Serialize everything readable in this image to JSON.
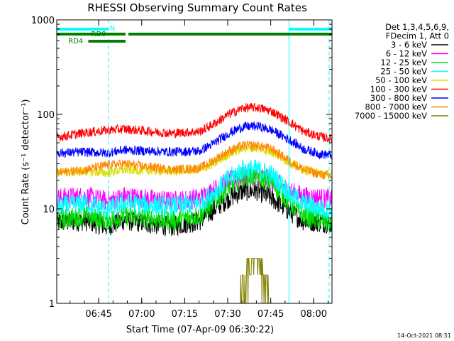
{
  "chart_data": {
    "type": "line",
    "title": "RHESSI Observing Summary Count Rates",
    "xlabel": "Start Time (07-Apr-09 06:30:22)",
    "ylabel": "Count Rate (s⁻¹ detector⁻¹)",
    "yscale": "log",
    "ylim": [
      1,
      1000
    ],
    "xlim_minutes": [
      0,
      96
    ],
    "x_unit": "minutes after 06:30:22",
    "x_ticks": [
      "06:45",
      "07:00",
      "07:15",
      "07:30",
      "07:45",
      "08:00"
    ],
    "y_ticks": [
      "1",
      "10",
      "100",
      "1000"
    ],
    "legend_header": [
      "Det 1,3,4,5,6,9,",
      "FDecim 1, Att 0"
    ],
    "legend_position": "right, outside plot",
    "series": [
      {
        "name": "3 - 6 keV",
        "color": "#000000",
        "x": [
          0,
          10,
          17.5,
          23.5,
          40,
          50,
          55,
          60,
          65,
          70,
          75,
          82,
          86,
          92,
          96
        ],
        "values": [
          7.2,
          7.5,
          6.5,
          7.6,
          6.5,
          7.5,
          10,
          13,
          15.5,
          15.5,
          13,
          9,
          7.5,
          7.2,
          7
        ]
      },
      {
        "name": "6 - 12 keV",
        "color": "#ff00ff",
        "x": [
          0,
          10,
          17.5,
          23.5,
          40,
          50,
          55,
          60,
          65,
          70,
          75,
          82,
          86,
          92,
          96
        ],
        "values": [
          13,
          13.5,
          12,
          13.5,
          12,
          13,
          16,
          19.5,
          22,
          22,
          20,
          15,
          13.5,
          13,
          12.5
        ]
      },
      {
        "name": "12 - 25 keV",
        "color": "#00dd00",
        "x": [
          0,
          10,
          17.5,
          23.5,
          40,
          50,
          55,
          60,
          65,
          70,
          75,
          82,
          86,
          92,
          96
        ],
        "values": [
          7.5,
          8.5,
          7.5,
          8.5,
          7.5,
          8.5,
          12,
          17,
          22,
          22,
          19,
          11,
          8.5,
          7.5,
          7
        ]
      },
      {
        "name": "25 - 50 keV",
        "color": "#00ffff",
        "x": [
          0,
          10,
          17.5,
          23.5,
          40,
          50,
          55,
          60,
          65,
          70,
          75,
          82,
          86,
          92,
          96
        ],
        "values": [
          10.5,
          11.5,
          9.8,
          11.5,
          10.5,
          11.5,
          15,
          21,
          26,
          26,
          23,
          14,
          11.5,
          10,
          9.7
        ]
      },
      {
        "name": "50 - 100 keV",
        "color": "#dddd00",
        "x": [
          0,
          10,
          17.5,
          23.5,
          40,
          50,
          55,
          60,
          65,
          70,
          75,
          82,
          86,
          92,
          96
        ],
        "values": [
          24,
          25,
          24,
          26,
          25,
          26,
          30,
          38,
          44,
          44,
          40,
          30,
          26,
          24,
          23
        ]
      },
      {
        "name": "100 - 300 keV",
        "color": "#ff0000",
        "x": [
          0,
          10,
          17.5,
          23.5,
          40,
          50,
          55,
          60,
          65,
          70,
          75,
          82,
          86,
          92,
          96
        ],
        "values": [
          57,
          64,
          68,
          70,
          63,
          66,
          80,
          100,
          117,
          118,
          108,
          80,
          66,
          58,
          55
        ]
      },
      {
        "name": "300 - 800 keV",
        "color": "#0000ff",
        "x": [
          0,
          10,
          17.5,
          23.5,
          40,
          50,
          55,
          60,
          65,
          70,
          75,
          82,
          86,
          92,
          96
        ],
        "values": [
          39,
          40,
          39,
          42,
          40,
          41,
          50,
          63,
          74,
          75,
          68,
          52,
          43,
          38,
          37
        ]
      },
      {
        "name": "800 - 7000 keV",
        "color": "#ff8800",
        "x": [
          0,
          10,
          17.5,
          23.5,
          40,
          50,
          55,
          60,
          65,
          70,
          75,
          82,
          86,
          92,
          96
        ],
        "values": [
          24,
          26,
          29,
          30,
          26,
          27,
          33,
          41,
          47,
          47,
          43,
          31,
          26,
          23,
          22
        ]
      },
      {
        "name": "7000 - 15000 keV",
        "color": "#808000",
        "x": [
          64,
          66,
          68,
          70,
          72,
          74
        ],
        "values": [
          1,
          2,
          3,
          3,
          2,
          1
        ]
      }
    ],
    "segment_bars": [
      {
        "label": "N",
        "color": "#00ffff",
        "x_start": 0,
        "x_end": 18
      },
      {
        "label": "",
        "color": "#00ffff",
        "x_start": 81,
        "x_end": 96
      },
      {
        "label": "RD0",
        "color": "#008000",
        "x_start": 0,
        "x_end": 24
      },
      {
        "label": "",
        "color": "#008000",
        "x_start": 25,
        "x_end": 96
      },
      {
        "label": "RD4",
        "color": "#008000",
        "x_start": 11,
        "x_end": 24
      }
    ],
    "vertical_lines": [
      {
        "x": 18,
        "color": "#00ffff",
        "style": "dashed"
      },
      {
        "x": 81,
        "color": "#00ffff",
        "style": "solid"
      },
      {
        "x": 95,
        "color": "#00ffff",
        "style": "dashed"
      }
    ],
    "attenuator_drop": {
      "x_start": 10,
      "x_end": 24
    }
  },
  "timestamp": "14-Oct-2021 08:51"
}
